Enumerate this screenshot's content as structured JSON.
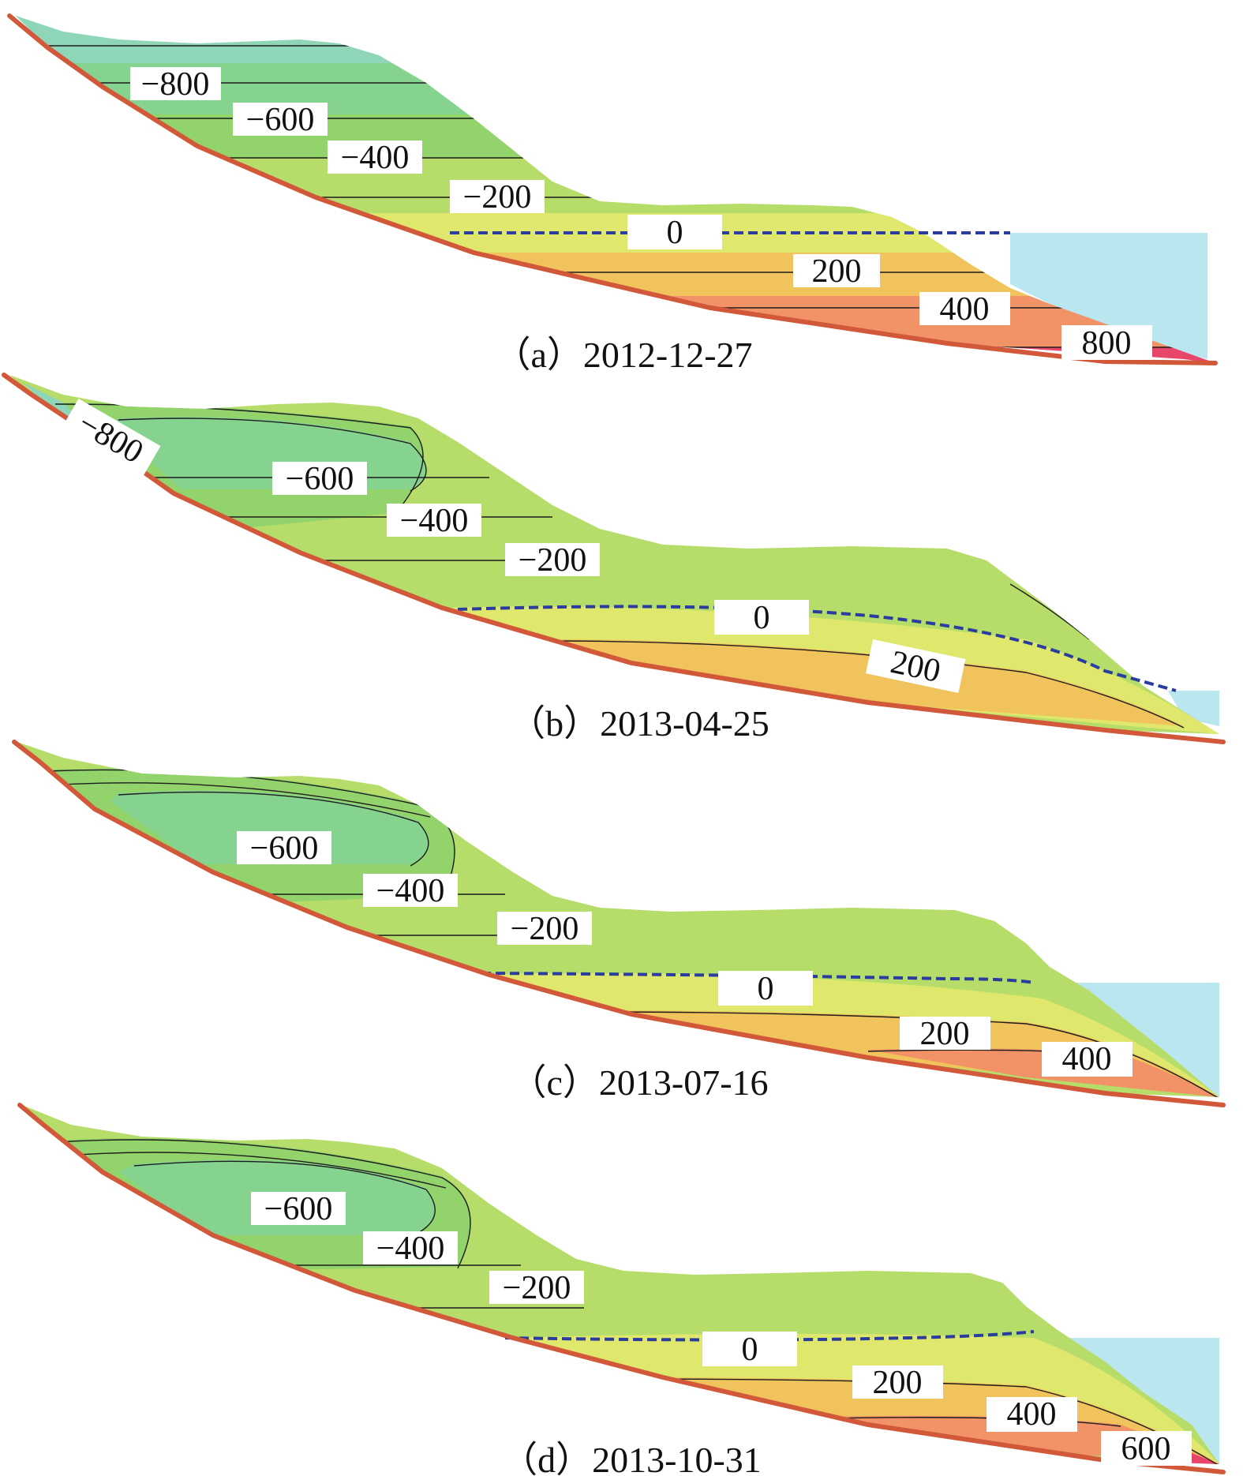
{
  "panels": [
    {
      "id": "a",
      "caption": "（a）2012-12-27",
      "labels": [
        "−800",
        "−600",
        "−400",
        "−200",
        "0",
        "200",
        "400",
        "800"
      ]
    },
    {
      "id": "b",
      "caption": "（b）2013-04-25",
      "labels": [
        "−800",
        "−600",
        "−400",
        "−200",
        "0",
        "200"
      ]
    },
    {
      "id": "c",
      "caption": "（c）2013-07-16",
      "labels": [
        "−600",
        "−400",
        "−200",
        "0",
        "200",
        "400"
      ]
    },
    {
      "id": "d",
      "caption": "（d）2013-10-31",
      "labels": [
        "−600",
        "−400",
        "−200",
        "0",
        "200",
        "400",
        "600"
      ]
    }
  ],
  "colors": {
    "bedrock_line": "#d2583a",
    "water_table": "#2a3d9e",
    "reservoir_water": "#b9e6ef",
    "zone_minus800": "#8fd6b8",
    "zone_minus600": "#86d38f",
    "zone_minus400": "#92d36b",
    "zone_minus200": "#b6dd6a",
    "zone_0": "#dfe86c",
    "zone_200": "#f0c35c",
    "zone_400": "#f19366",
    "zone_800": "#e8456a"
  }
}
